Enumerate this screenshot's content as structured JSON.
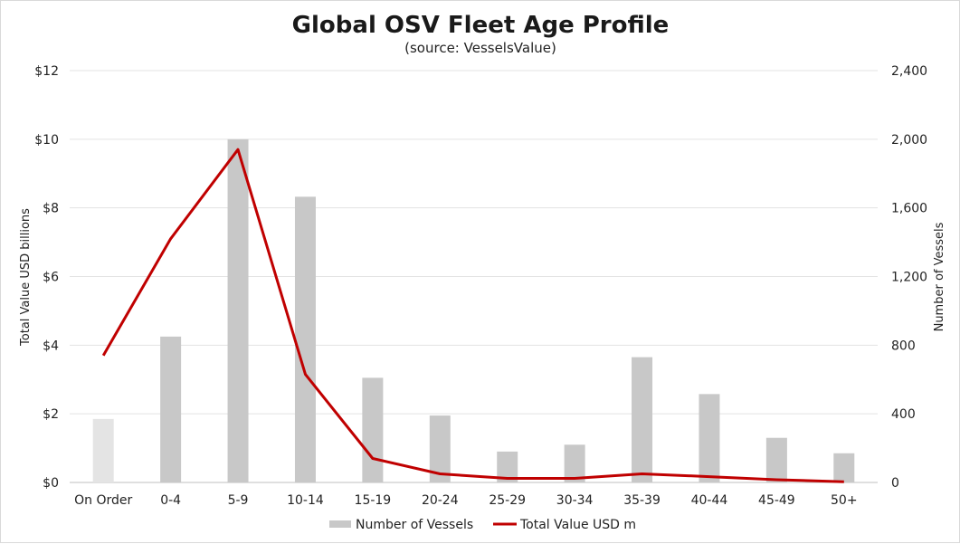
{
  "chart_data": {
    "type": "bar",
    "title": "Global OSV Fleet Age Profile",
    "subtitle": "(source: VesselsValue)",
    "categories": [
      "On Order",
      "0-4",
      "5-9",
      "10-14",
      "15-19",
      "20-24",
      "25-29",
      "30-34",
      "35-39",
      "40-44",
      "45-49",
      "50+"
    ],
    "series": [
      {
        "name": "Number of Vessels",
        "type": "bar",
        "axis": "right",
        "color": "#c8c8c8",
        "highlight_color": "#e4e4e4",
        "values": [
          370,
          850,
          2000,
          1665,
          610,
          390,
          180,
          220,
          730,
          515,
          260,
          170
        ]
      },
      {
        "name": "Total Value USD m",
        "type": "line",
        "axis": "left",
        "color": "#c00000",
        "values": [
          3.7,
          7.1,
          9.7,
          3.15,
          0.7,
          0.25,
          0.12,
          0.12,
          0.25,
          0.17,
          0.08,
          0.02
        ]
      }
    ],
    "left_axis": {
      "label": "Total Value USD billions",
      "ylim": [
        0,
        12
      ],
      "ticks": [
        0,
        2,
        4,
        6,
        8,
        10,
        12
      ],
      "tick_labels": [
        "$0",
        "$2",
        "$4",
        "$6",
        "$8",
        "$10",
        "$12"
      ]
    },
    "right_axis": {
      "label": "Number of Vessels",
      "ylim": [
        0,
        2400
      ],
      "ticks": [
        0,
        400,
        800,
        1200,
        1600,
        2000,
        2400
      ],
      "tick_labels": [
        "0",
        "400",
        "800",
        "1,200",
        "1,600",
        "2,000",
        "2,400"
      ]
    },
    "grid": true,
    "legend_position": "bottom"
  }
}
